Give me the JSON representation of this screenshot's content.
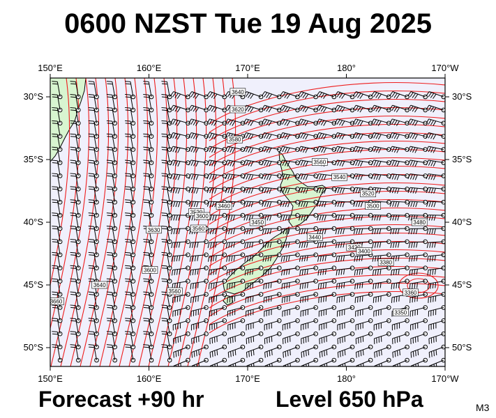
{
  "title": "0600 NZST Tue 19 Aug 2025",
  "forecast_label": "Forecast +90 hr",
  "level_label": "Level 650 hPa",
  "model_code": "M3",
  "colors": {
    "ocean": "#f0f0fc",
    "land": "#d8f5d0",
    "contour": "#ee1c1c",
    "barb": "#000000",
    "frame": "#000000"
  },
  "axes": {
    "lon_labels": [
      "150°E",
      "160°E",
      "170°E",
      "180°",
      "170°W"
    ],
    "lat_labels": [
      "30°S",
      "35°S",
      "40°S",
      "45°S",
      "50°S"
    ]
  },
  "map": {
    "type": "geopotential height contours with wind barbs",
    "lon_range": [
      150,
      190
    ],
    "lat_range": [
      -28.5,
      -51.5
    ],
    "contour_interval_gpm": 10,
    "contour_labels": [
      {
        "text": "3640",
        "lon": 169.0,
        "lat": -29.6
      },
      {
        "text": "3620",
        "lon": 169.0,
        "lat": -31.0
      },
      {
        "text": "3580",
        "lon": 168.7,
        "lat": -33.4
      },
      {
        "text": "3560",
        "lon": 177.3,
        "lat": -35.2
      },
      {
        "text": "3540",
        "lon": 179.3,
        "lat": -36.4
      },
      {
        "text": "3520",
        "lon": 182.2,
        "lat": -37.7
      },
      {
        "text": "3500",
        "lon": 182.7,
        "lat": -38.7
      },
      {
        "text": "3480",
        "lon": 187.4,
        "lat": -40.0
      },
      {
        "text": "3460",
        "lon": 167.6,
        "lat": -38.7
      },
      {
        "text": "3450",
        "lon": 171.0,
        "lat": -40.0
      },
      {
        "text": "3440",
        "lon": 176.8,
        "lat": -41.2
      },
      {
        "text": "3420",
        "lon": 180.8,
        "lat": -42.0
      },
      {
        "text": "3400",
        "lon": 181.8,
        "lat": -42.3
      },
      {
        "text": "3380",
        "lon": 184.0,
        "lat": -43.2
      },
      {
        "text": "3360",
        "lon": 186.5,
        "lat": -45.6
      },
      {
        "text": "3350",
        "lon": 185.5,
        "lat": -47.2
      },
      {
        "text": "3520",
        "lon": 164.8,
        "lat": -39.2
      },
      {
        "text": "3560",
        "lon": 165.0,
        "lat": -40.5
      },
      {
        "text": "3600",
        "lon": 165.4,
        "lat": -39.5
      },
      {
        "text": "3630",
        "lon": 160.5,
        "lat": -40.6
      },
      {
        "text": "3600",
        "lon": 160.1,
        "lat": -43.8
      },
      {
        "text": "3560",
        "lon": 162.6,
        "lat": -45.5
      },
      {
        "text": "3640",
        "lon": 155.0,
        "lat": -45.0
      },
      {
        "text": "3660",
        "lon": 150.6,
        "lat": -46.3
      }
    ],
    "wind_flow": "cyclonic trough east of New Zealand with strong northwesterly to westerly flow over the country"
  }
}
